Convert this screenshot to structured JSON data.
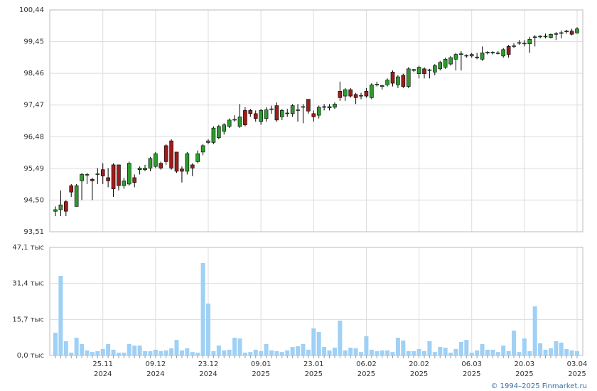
{
  "chart_data": [
    {
      "type": "candlestick",
      "up_color": "#2f9a2f",
      "down_color": "#9e1c1c",
      "grid": true,
      "ylim": [
        93.51,
        100.44
      ],
      "yticks": [
        {
          "value": 93.51,
          "label": "93,51"
        },
        {
          "value": 94.5,
          "label": "94,50"
        },
        {
          "value": 95.49,
          "label": "95,49"
        },
        {
          "value": 96.48,
          "label": "96,48"
        },
        {
          "value": 97.47,
          "label": "97,47"
        },
        {
          "value": 98.46,
          "label": "98,46"
        },
        {
          "value": 99.45,
          "label": "99,45"
        },
        {
          "value": 100.44,
          "label": "100,44"
        }
      ],
      "open": [
        94.15,
        94.2,
        94.45,
        94.95,
        94.3,
        95.1,
        95.3,
        95.15,
        95.3,
        95.45,
        95.2,
        95.6,
        95.6,
        94.95,
        95.0,
        95.2,
        95.45,
        95.45,
        95.5,
        95.55,
        95.65,
        96.2,
        96.35,
        96.0,
        95.47,
        95.4,
        95.6,
        95.7,
        96.0,
        96.3,
        96.3,
        96.45,
        96.65,
        96.8,
        97.0,
        96.8,
        97.3,
        97.3,
        97.2,
        96.95,
        97.05,
        97.33,
        97.45,
        97.1,
        97.2,
        97.2,
        97.3,
        97.4,
        97.65,
        97.2,
        97.15,
        97.4,
        97.38,
        97.4,
        97.9,
        97.75,
        97.95,
        97.8,
        97.75,
        97.9,
        97.7,
        98.1,
        98.05,
        98.1,
        98.5,
        98.1,
        98.4,
        98.05,
        98.55,
        98.45,
        98.6,
        98.55,
        98.5,
        98.6,
        98.65,
        98.75,
        98.9,
        99.05,
        99.0,
        99.0,
        98.95,
        98.9,
        99.1,
        99.1,
        99.1,
        99.0,
        99.3,
        99.3,
        99.4,
        99.4,
        99.38,
        99.6,
        99.6,
        99.62,
        99.58,
        99.68,
        99.72,
        99.76,
        99.78,
        99.72
      ],
      "high": [
        94.3,
        94.8,
        94.5,
        95.0,
        95.0,
        95.35,
        95.35,
        95.2,
        95.5,
        95.65,
        95.5,
        95.65,
        95.6,
        95.2,
        95.7,
        95.3,
        95.55,
        95.6,
        95.85,
        96.0,
        95.7,
        96.25,
        96.4,
        96.0,
        95.55,
        96.0,
        95.65,
        96.05,
        96.25,
        96.4,
        96.8,
        96.85,
        96.9,
        97.05,
        97.15,
        97.5,
        97.4,
        97.35,
        97.3,
        97.35,
        97.4,
        97.45,
        97.55,
        97.35,
        97.35,
        97.5,
        97.5,
        97.5,
        97.65,
        97.3,
        97.45,
        97.5,
        97.5,
        97.55,
        98.2,
        98.0,
        98.0,
        97.85,
        97.85,
        98.0,
        98.15,
        98.2,
        98.1,
        98.3,
        98.55,
        98.4,
        98.45,
        98.65,
        98.6,
        98.7,
        98.65,
        98.6,
        98.75,
        98.85,
        98.95,
        99.0,
        99.1,
        99.15,
        99.05,
        99.1,
        99.1,
        99.3,
        99.15,
        99.15,
        99.15,
        99.25,
        99.35,
        99.4,
        99.5,
        99.5,
        99.6,
        99.65,
        99.65,
        99.7,
        99.7,
        99.75,
        99.8,
        99.82,
        99.85,
        99.9
      ],
      "low": [
        94.0,
        94.0,
        94.0,
        94.6,
        94.3,
        94.5,
        95.0,
        94.5,
        95.0,
        95.0,
        94.9,
        94.6,
        94.8,
        94.85,
        94.95,
        94.9,
        95.3,
        95.4,
        95.4,
        95.5,
        95.45,
        95.6,
        95.45,
        95.35,
        95.05,
        95.3,
        95.25,
        95.65,
        95.9,
        96.25,
        96.25,
        96.4,
        96.55,
        96.75,
        96.95,
        96.75,
        96.8,
        97.1,
        96.95,
        96.85,
        96.95,
        97.2,
        96.95,
        97.0,
        97.1,
        97.1,
        96.95,
        96.9,
        97.2,
        96.95,
        97.05,
        97.3,
        97.3,
        97.35,
        97.6,
        97.6,
        97.7,
        97.5,
        97.65,
        97.7,
        97.65,
        98.05,
        97.95,
        98.05,
        98.05,
        98.0,
        98.0,
        98.0,
        98.5,
        98.3,
        98.3,
        98.3,
        98.4,
        98.55,
        98.6,
        98.7,
        98.55,
        98.55,
        98.95,
        98.95,
        98.9,
        98.85,
        99.05,
        99.05,
        99.05,
        98.95,
        98.95,
        99.25,
        99.35,
        99.3,
        99.1,
        99.3,
        99.55,
        99.55,
        99.55,
        99.5,
        99.55,
        99.7,
        99.65,
        99.7
      ],
      "close": [
        94.2,
        94.35,
        94.15,
        94.75,
        94.95,
        95.3,
        95.3,
        95.1,
        95.32,
        95.25,
        95.1,
        94.85,
        94.95,
        95.1,
        95.65,
        95.05,
        95.5,
        95.5,
        95.8,
        95.95,
        95.5,
        95.7,
        95.5,
        95.4,
        95.4,
        95.95,
        95.5,
        95.95,
        96.2,
        96.35,
        96.75,
        96.8,
        96.85,
        97.0,
        97.02,
        97.1,
        96.85,
        97.2,
        97.05,
        97.3,
        97.32,
        97.35,
        97.0,
        97.3,
        97.22,
        97.45,
        97.32,
        97.42,
        97.28,
        97.1,
        97.4,
        97.42,
        97.42,
        97.5,
        97.7,
        97.95,
        97.75,
        97.7,
        97.77,
        97.75,
        98.1,
        98.12,
        98.08,
        98.25,
        98.15,
        98.35,
        98.05,
        98.6,
        98.58,
        98.65,
        98.45,
        98.57,
        98.7,
        98.8,
        98.9,
        98.95,
        99.05,
        99.07,
        99.02,
        99.05,
        98.97,
        99.1,
        99.12,
        99.12,
        99.1,
        99.2,
        99.05,
        99.32,
        99.42,
        99.4,
        99.52,
        99.6,
        99.62,
        99.62,
        99.68,
        99.7,
        99.73,
        99.78,
        99.68,
        99.85
      ]
    },
    {
      "type": "bar",
      "color": "#9fd0f5",
      "grid": true,
      "ylim": [
        0,
        47.1
      ],
      "yticks": [
        {
          "value": 0,
          "label": "0,0 тыс"
        },
        {
          "value": 15.7,
          "label": "15,7 тыс"
        },
        {
          "value": 31.4,
          "label": "31,4 тыс"
        },
        {
          "value": 47.1,
          "label": "47,1 тыс"
        }
      ],
      "categories": [
        null,
        null,
        null,
        null,
        null,
        null,
        null,
        null,
        null,
        "25.11 2024",
        null,
        null,
        null,
        null,
        null,
        null,
        null,
        null,
        null,
        "09.12 2024",
        null,
        null,
        null,
        null,
        null,
        null,
        null,
        null,
        null,
        "23.12 2024",
        null,
        null,
        null,
        null,
        null,
        null,
        null,
        null,
        null,
        "09.01 2025",
        null,
        null,
        null,
        null,
        null,
        null,
        null,
        null,
        null,
        "23.01 2025",
        null,
        null,
        null,
        null,
        null,
        null,
        null,
        null,
        null,
        "06.02 2025",
        null,
        null,
        null,
        null,
        null,
        null,
        null,
        null,
        null,
        "20.02 2025",
        null,
        null,
        null,
        null,
        null,
        null,
        null,
        null,
        null,
        "06.03 2025",
        null,
        null,
        null,
        null,
        null,
        null,
        null,
        null,
        null,
        "20.03 2025",
        null,
        null,
        null,
        null,
        null,
        null,
        null,
        null,
        null,
        "03.04 2025"
      ],
      "values": [
        9.9,
        34.7,
        6.2,
        1.2,
        7.7,
        5.0,
        2.2,
        1.5,
        1.9,
        2.8,
        5.0,
        2.5,
        1.2,
        1.2,
        5.0,
        4.3,
        4.3,
        1.9,
        1.9,
        2.5,
        1.9,
        2.2,
        3.1,
        6.8,
        2.2,
        3.1,
        1.5,
        1.2,
        40.3,
        22.6,
        1.9,
        4.3,
        2.2,
        2.5,
        7.7,
        7.4,
        1.2,
        1.5,
        2.5,
        1.9,
        5.0,
        2.2,
        1.9,
        1.5,
        2.2,
        3.7,
        4.0,
        5.0,
        2.5,
        11.8,
        10.2,
        3.7,
        2.2,
        3.4,
        15.2,
        2.2,
        3.4,
        3.1,
        1.5,
        8.4,
        2.5,
        1.9,
        2.2,
        2.2,
        1.5,
        7.7,
        6.5,
        1.9,
        1.9,
        2.8,
        1.9,
        6.2,
        1.5,
        3.7,
        3.4,
        1.2,
        2.8,
        5.9,
        6.8,
        1.2,
        2.2,
        5.0,
        2.5,
        2.5,
        1.5,
        4.3,
        1.9,
        10.8,
        1.5,
        7.4,
        1.9,
        21.4,
        5.3,
        2.5,
        3.1,
        6.2,
        5.6,
        2.8,
        2.2,
        1.9
      ]
    }
  ],
  "footer": "© 1994–2025 Finmarket.ru"
}
